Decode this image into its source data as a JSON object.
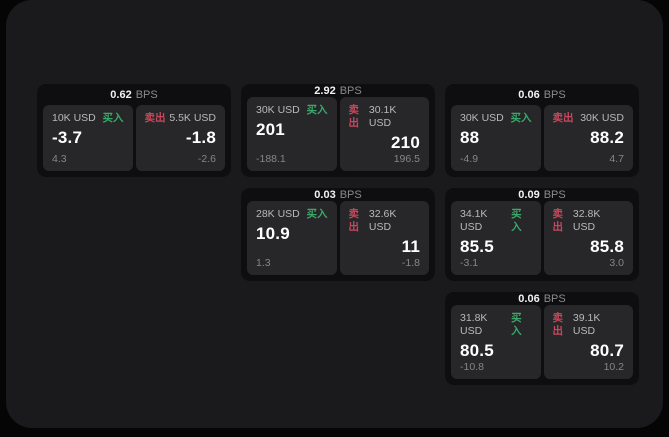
{
  "labels": {
    "buy": "买入",
    "sell": "卖出",
    "bps_unit": "BPS"
  },
  "colors": {
    "buy_green": "#39a968",
    "sell_red": "#c9475c",
    "panel_bg": "#27272a",
    "card_bg": "#0e0e10",
    "app_bg": "#1a1a1c"
  },
  "cards": [
    {
      "bps": "0.62",
      "buy": {
        "size": "10K USD",
        "value": "-3.7",
        "sub": "4.3"
      },
      "sell": {
        "size": "5.5K USD",
        "value": "-1.8",
        "sub": "-2.6"
      }
    },
    {
      "bps": "2.92",
      "buy": {
        "size": "30K USD",
        "value": "201",
        "sub": "-188.1"
      },
      "sell": {
        "size": "30.1K USD",
        "value": "210",
        "sub": "196.5"
      }
    },
    {
      "bps": "0.06",
      "buy": {
        "size": "30K USD",
        "value": "88",
        "sub": "-4.9"
      },
      "sell": {
        "size": "30K USD",
        "value": "88.2",
        "sub": "4.7"
      }
    },
    {
      "bps": "0.03",
      "buy": {
        "size": "28K USD",
        "value": "10.9",
        "sub": "1.3"
      },
      "sell": {
        "size": "32.6K USD",
        "value": "11",
        "sub": "-1.8"
      }
    },
    {
      "bps": "0.09",
      "buy": {
        "size": "34.1K USD",
        "value": "85.5",
        "sub": "-3.1"
      },
      "sell": {
        "size": "32.8K USD",
        "value": "85.8",
        "sub": "3.0"
      }
    },
    {
      "bps": "0.06",
      "buy": {
        "size": "31.8K USD",
        "value": "80.5",
        "sub": "-10.8"
      },
      "sell": {
        "size": "39.1K USD",
        "value": "80.7",
        "sub": "10.2"
      }
    }
  ]
}
